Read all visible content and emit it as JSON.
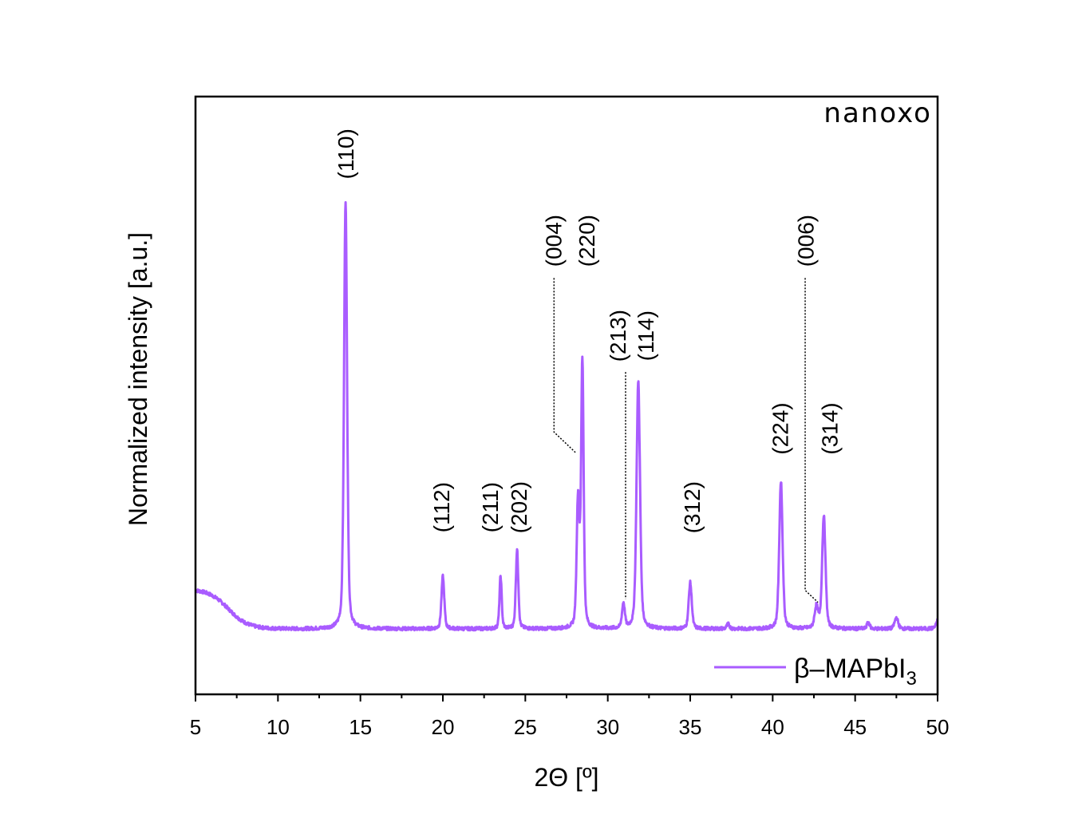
{
  "chart_data": {
    "type": "line",
    "xlabel": "2Θ [º]",
    "ylabel": "Normalized intensity [a.u.]",
    "xlim": [
      5,
      50
    ],
    "ylim": [
      -0.153,
      1.244
    ],
    "x_ticks": [
      5,
      10,
      15,
      20,
      25,
      30,
      35,
      40,
      45,
      50
    ],
    "y_ticks": [],
    "grid": false,
    "legend_placement": "bottom-right",
    "logo": "NANOXO",
    "series": [
      {
        "name": "β–MAPbI3",
        "name_main": "β–MAPbI",
        "name_sub": "3",
        "color": "#a95cff",
        "background": {
          "amplitude": 0.093,
          "center": 7.0,
          "decay": 0.6
        },
        "peaks": [
          {
            "x": 14.1,
            "y": 1.0,
            "fwhm": 0.22
          },
          {
            "x": 20.0,
            "y": 0.123,
            "fwhm": 0.2
          },
          {
            "x": 23.5,
            "y": 0.123,
            "fwhm": 0.16
          },
          {
            "x": 24.5,
            "y": 0.185,
            "fwhm": 0.18
          },
          {
            "x": 28.2,
            "y": 0.3,
            "fwhm": 0.2
          },
          {
            "x": 28.46,
            "y": 0.62,
            "fwhm": 0.18
          },
          {
            "x": 30.95,
            "y": 0.058,
            "fwhm": 0.2
          },
          {
            "x": 31.85,
            "y": 0.58,
            "fwhm": 0.25
          },
          {
            "x": 35.0,
            "y": 0.108,
            "fwhm": 0.22
          },
          {
            "x": 37.3,
            "y": 0.011,
            "fwhm": 0.2
          },
          {
            "x": 40.5,
            "y": 0.345,
            "fwhm": 0.24
          },
          {
            "x": 42.65,
            "y": 0.05,
            "fwhm": 0.25
          },
          {
            "x": 43.1,
            "y": 0.265,
            "fwhm": 0.24
          },
          {
            "x": 45.8,
            "y": 0.015,
            "fwhm": 0.2
          },
          {
            "x": 47.5,
            "y": 0.026,
            "fwhm": 0.25
          },
          {
            "x": 50.1,
            "y": 0.03,
            "fwhm": 0.3
          }
        ]
      }
    ],
    "annotations": [
      {
        "text": "(110)",
        "x": 14.1,
        "y": 1.11
      },
      {
        "text": "(112)",
        "x": 19.9,
        "y": 0.284
      },
      {
        "text": "(211)",
        "x": 22.85,
        "y": 0.284
      },
      {
        "text": "(202)",
        "x": 24.6,
        "y": 0.284
      },
      {
        "text": "(004)",
        "x": 26.7,
        "y": 0.907,
        "leader": [
          [
            26.74,
            0.82
          ],
          [
            26.74,
            0.46
          ],
          [
            28.1,
            0.41
          ]
        ]
      },
      {
        "text": "(220)",
        "x": 28.7,
        "y": 0.907
      },
      {
        "text": "(213)",
        "x": 30.6,
        "y": 0.685,
        "leader": [
          [
            31.08,
            0.6
          ],
          [
            31.08,
            0.07
          ]
        ]
      },
      {
        "text": "(114)",
        "x": 32.3,
        "y": 0.685
      },
      {
        "text": "(312)",
        "x": 35.1,
        "y": 0.284
      },
      {
        "text": "(224)",
        "x": 40.45,
        "y": 0.468
      },
      {
        "text": "(006)",
        "x": 42.0,
        "y": 0.907,
        "leader": [
          [
            41.97,
            0.82
          ],
          [
            41.97,
            0.09
          ],
          [
            42.75,
            0.062
          ]
        ]
      },
      {
        "text": "(314)",
        "x": 43.45,
        "y": 0.468
      }
    ]
  }
}
